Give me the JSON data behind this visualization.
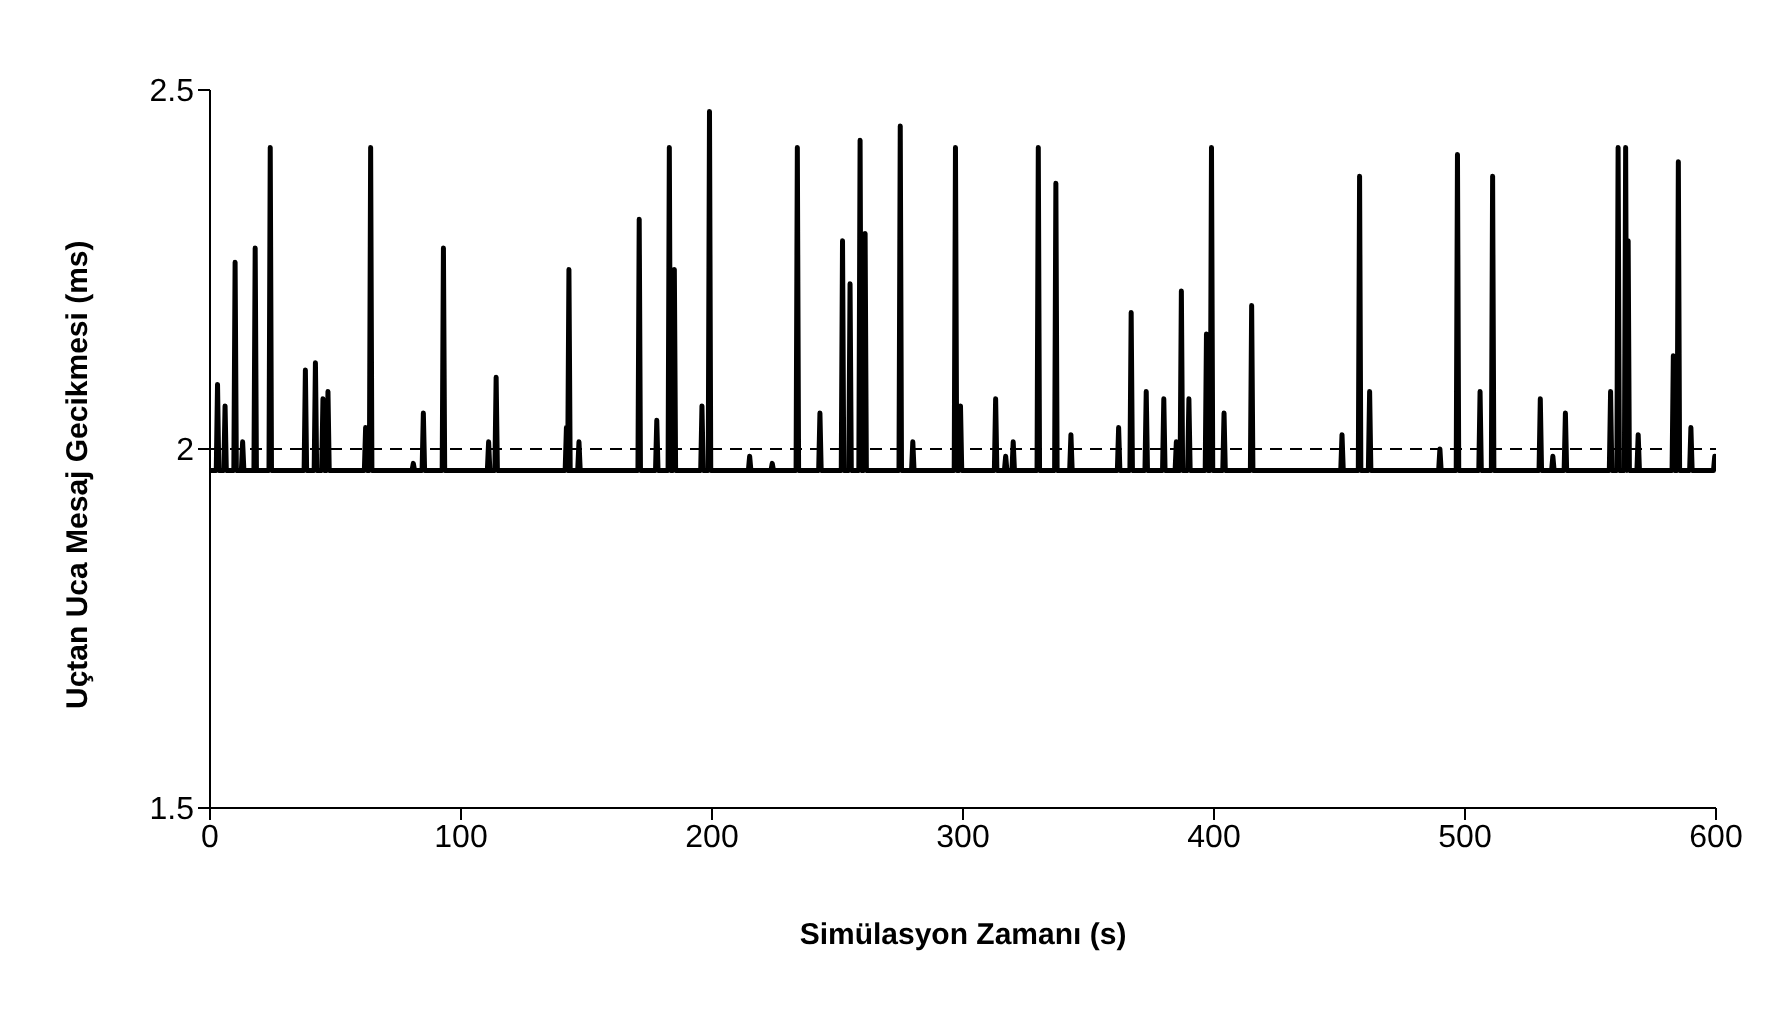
{
  "chart_data": {
    "type": "line",
    "xlabel": "Simülasyon Zamanı (s)",
    "ylabel": "Uçtan Uca Mesaj Gecikmesi (ms)",
    "xlim": [
      0,
      600
    ],
    "xticks": [
      0,
      100,
      200,
      300,
      400,
      500,
      600
    ],
    "ylim": [
      1.5,
      2.5
    ],
    "yticks": [
      1.5,
      2,
      2.5
    ],
    "grid": false,
    "legend": false,
    "marker": "none",
    "line_style": "solid",
    "ref_lines": [
      {
        "axis": "y",
        "value": 2,
        "line_style": "dashed",
        "color": "#000000"
      }
    ],
    "series": [
      {
        "color": "#000000",
        "x": [
          0,
          2.5,
          3,
          3.5,
          5.5,
          6,
          6.5,
          9.5,
          10,
          10.5,
          12.5,
          13,
          13.5,
          17.5,
          18,
          18.5,
          23.5,
          24,
          24.5,
          37.5,
          38,
          38.5,
          41.5,
          42,
          42.5,
          44.5,
          45,
          45.5,
          46.5,
          47,
          47.5,
          61.5,
          62,
          62.5,
          63.5,
          64,
          64.5,
          80.5,
          81,
          81.5,
          84.5,
          85,
          85.5,
          92.5,
          93,
          93.5,
          110.5,
          111,
          111.5,
          113.5,
          114,
          114.5,
          141.5,
          142,
          142.5,
          142.5,
          143,
          143.5,
          146.5,
          147,
          147.5,
          170.5,
          171,
          171.5,
          177.5,
          178,
          178.5,
          182.5,
          183,
          183.5,
          184.5,
          185,
          185.5,
          195.5,
          196,
          196.5,
          198.5,
          199,
          199.5,
          214.5,
          215,
          215.5,
          223.5,
          224,
          224.5,
          233.5,
          234,
          234.5,
          242.5,
          243,
          243.5,
          251.5,
          252,
          252.5,
          254.5,
          255,
          255.5,
          258.5,
          259,
          259.5,
          260.5,
          261,
          261.5,
          274.5,
          275,
          275.5,
          279.5,
          280,
          280.5,
          296.5,
          297,
          297.5,
          298.5,
          299,
          299.5,
          312.5,
          313,
          313.5,
          316.5,
          317,
          317.5,
          319.5,
          320,
          320.5,
          329.5,
          330,
          330.5,
          336.5,
          337,
          337.5,
          342.5,
          343,
          343.5,
          361.5,
          362,
          362.5,
          366.5,
          367,
          367.5,
          372.5,
          373,
          373.5,
          379.5,
          380,
          380.5,
          384.5,
          385,
          385.5,
          386.5,
          387,
          387.5,
          389.5,
          390,
          390.5,
          396.5,
          397,
          397.5,
          398.5,
          399,
          399.5,
          403.5,
          404,
          404.5,
          414.5,
          415,
          415.5,
          450.5,
          451,
          451.5,
          457.5,
          458,
          458.5,
          461.5,
          462,
          462.5,
          489.5,
          490,
          490.5,
          496.5,
          497,
          497.5,
          505.5,
          506,
          506.5,
          510.5,
          511,
          511.5,
          529.5,
          530,
          530.5,
          534.5,
          535,
          535.5,
          539.5,
          540,
          540.5,
          557.5,
          558,
          558.5,
          560.5,
          561,
          561.5,
          563.5,
          564,
          564.5,
          564.5,
          565,
          565.5,
          568.5,
          569,
          569.5,
          582.5,
          583,
          583.5,
          584.5,
          585,
          585.5,
          589.5,
          590,
          590.5,
          599,
          599.5,
          600
        ],
        "values": [
          1.97,
          1.97,
          2.09,
          1.97,
          1.97,
          2.06,
          1.97,
          1.97,
          2.26,
          1.97,
          1.97,
          2.01,
          1.97,
          1.97,
          2.28,
          1.97,
          1.97,
          2.42,
          1.97,
          1.97,
          2.11,
          1.97,
          1.97,
          2.12,
          1.97,
          1.97,
          2.07,
          1.97,
          1.97,
          2.08,
          1.97,
          1.97,
          2.03,
          1.97,
          1.97,
          2.42,
          1.97,
          1.97,
          1.98,
          1.97,
          1.97,
          2.05,
          1.97,
          1.97,
          2.28,
          1.97,
          1.97,
          2.01,
          1.97,
          1.97,
          2.1,
          1.97,
          1.97,
          2.03,
          1.97,
          1.97,
          2.25,
          1.97,
          1.97,
          2.01,
          1.97,
          1.97,
          2.32,
          1.97,
          1.97,
          2.04,
          1.97,
          1.97,
          2.42,
          1.97,
          1.97,
          2.25,
          1.97,
          1.97,
          2.06,
          1.97,
          1.97,
          2.47,
          1.97,
          1.97,
          1.99,
          1.97,
          1.97,
          1.98,
          1.97,
          1.97,
          2.42,
          1.97,
          1.97,
          2.05,
          1.97,
          1.97,
          2.29,
          1.97,
          1.97,
          2.23,
          1.97,
          1.97,
          2.43,
          1.97,
          1.97,
          2.3,
          1.97,
          1.97,
          2.45,
          1.97,
          1.97,
          2.01,
          1.97,
          1.97,
          2.42,
          1.97,
          1.97,
          2.06,
          1.97,
          1.97,
          2.07,
          1.97,
          1.97,
          1.99,
          1.97,
          1.97,
          2.01,
          1.97,
          1.97,
          2.42,
          1.97,
          1.97,
          2.37,
          1.97,
          1.97,
          2.02,
          1.97,
          1.97,
          2.03,
          1.97,
          1.97,
          2.19,
          1.97,
          1.97,
          2.08,
          1.97,
          1.97,
          2.07,
          1.97,
          1.97,
          2.01,
          1.97,
          1.97,
          2.22,
          1.97,
          1.97,
          2.07,
          1.97,
          1.97,
          2.16,
          1.97,
          1.97,
          2.42,
          1.97,
          1.97,
          2.05,
          1.97,
          1.97,
          2.2,
          1.97,
          1.97,
          2.02,
          1.97,
          1.97,
          2.38,
          1.97,
          1.97,
          2.08,
          1.97,
          1.97,
          2,
          1.97,
          1.97,
          2.41,
          1.97,
          1.97,
          2.08,
          1.97,
          1.97,
          2.38,
          1.97,
          1.97,
          2.07,
          1.97,
          1.97,
          1.99,
          1.97,
          1.97,
          2.05,
          1.97,
          1.97,
          2.08,
          1.97,
          1.97,
          2.42,
          1.97,
          1.97,
          2.42,
          1.97,
          1.97,
          2.29,
          1.97,
          1.97,
          2.02,
          1.97,
          1.97,
          2.13,
          1.97,
          1.97,
          2.4,
          1.97,
          1.97,
          2.03,
          1.97,
          1.97,
          1.99,
          1.97
        ]
      }
    ]
  }
}
